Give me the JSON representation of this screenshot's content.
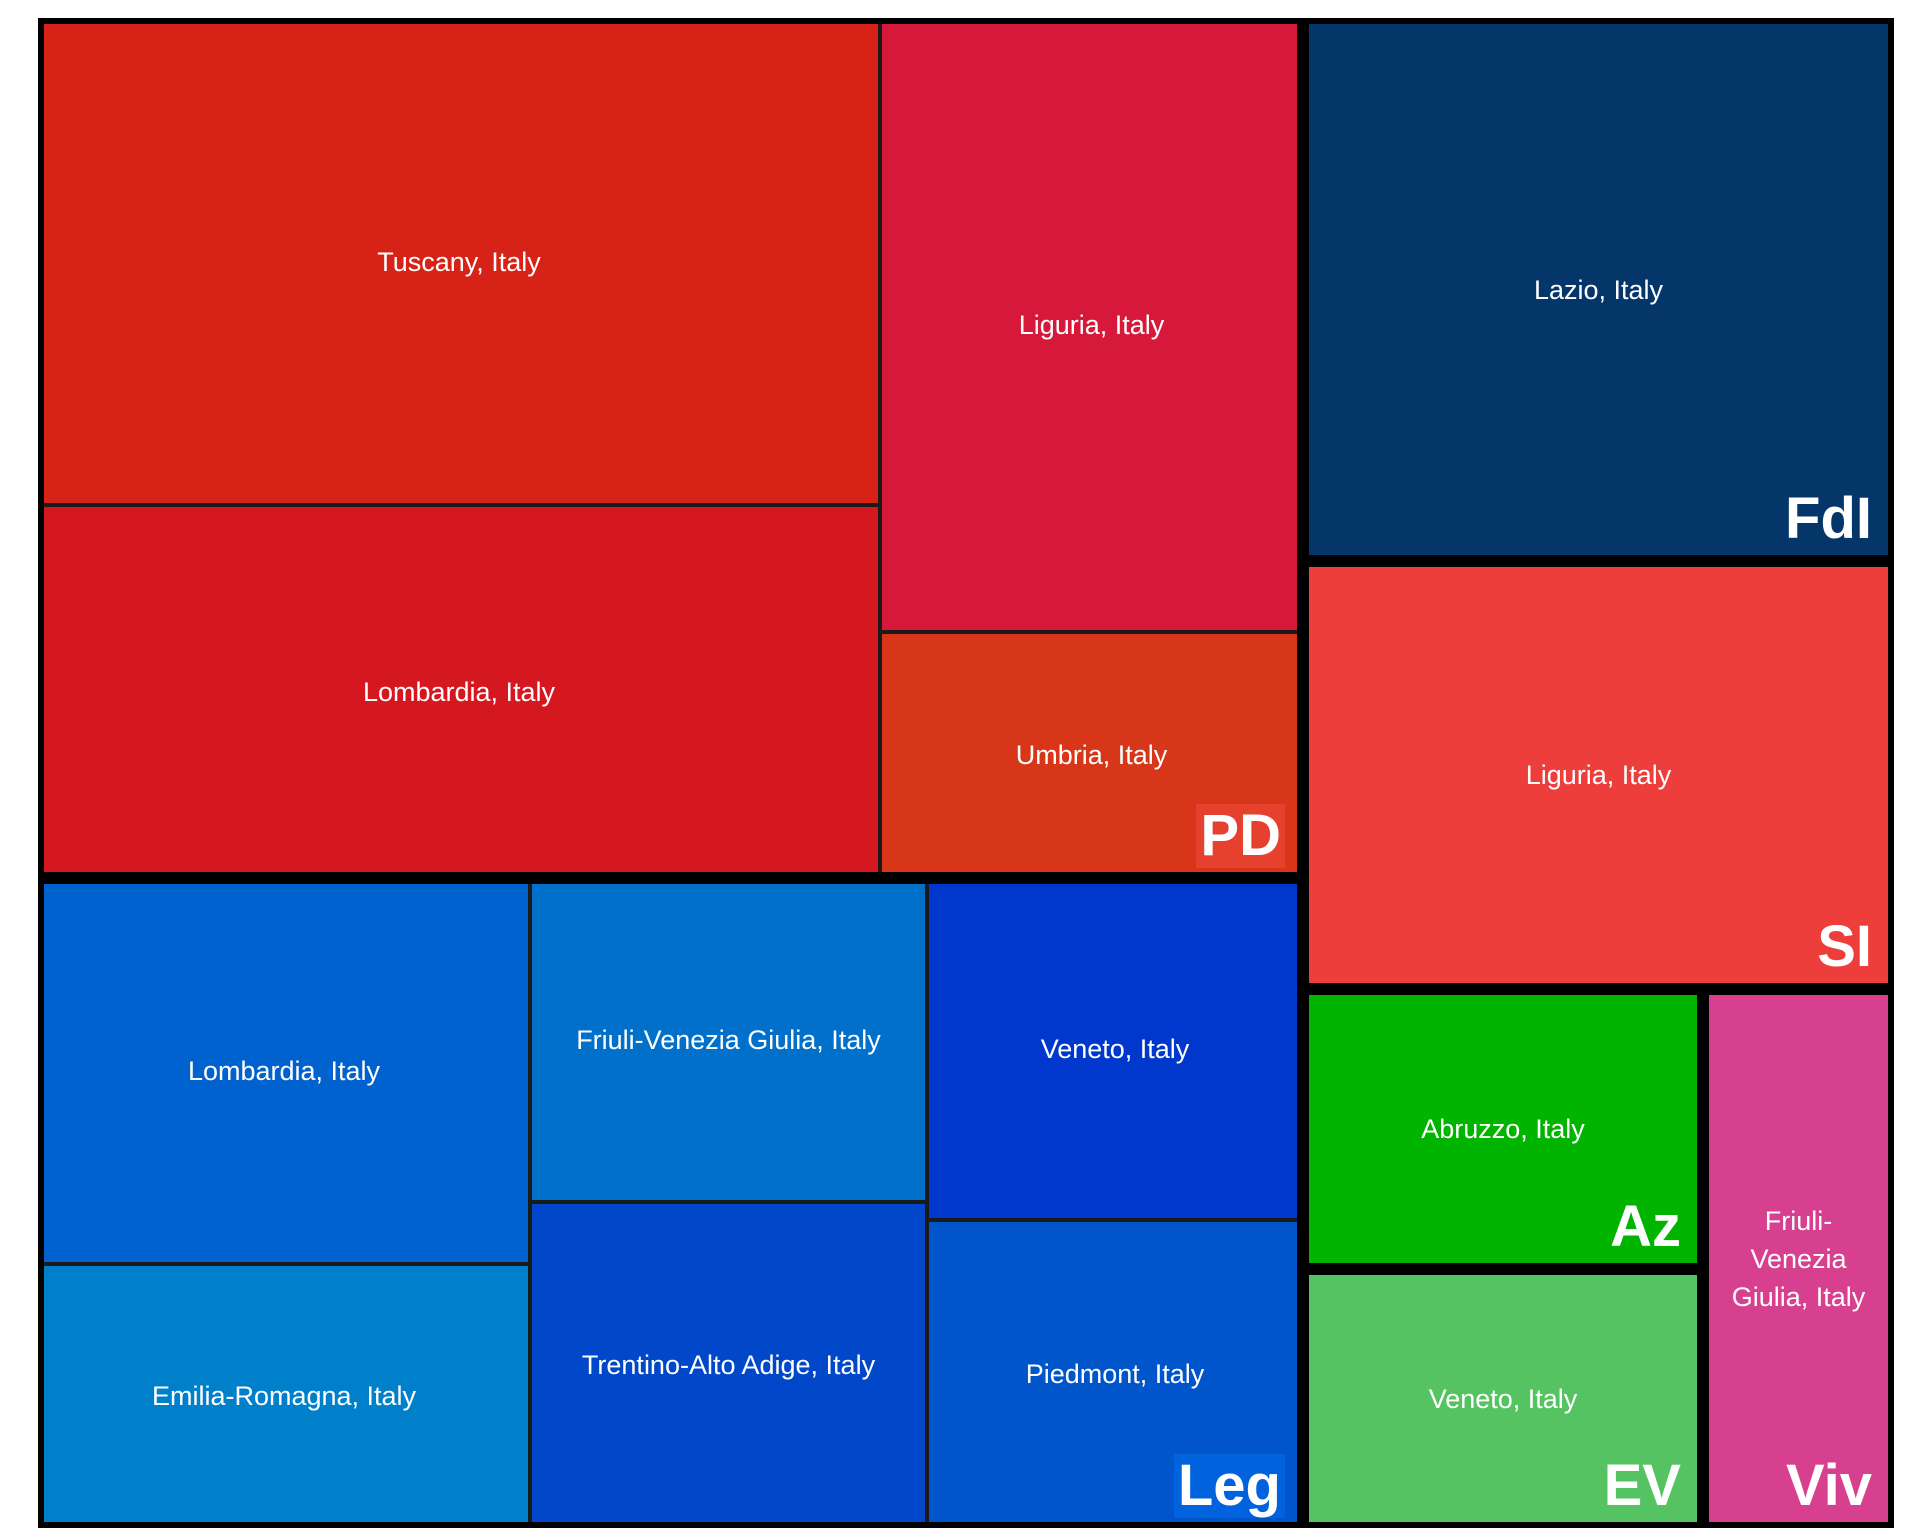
{
  "chart_data": {
    "type": "treemap",
    "groups": [
      {
        "name": "PD",
        "label_bg": "#e5412e",
        "leaves": [
          {
            "label": "Tuscany, Italy",
            "color": "#d72217"
          },
          {
            "label": "Lombardia, Italy",
            "color": "#d51820"
          },
          {
            "label": "Liguria, Italy",
            "color": "#d6193b"
          },
          {
            "label": "Umbria, Italy",
            "color": "#d83618"
          }
        ]
      },
      {
        "name": "FdI",
        "label_bg": "",
        "leaves": [
          {
            "label": "Lazio, Italy",
            "color": "#05366a"
          }
        ]
      },
      {
        "name": "SI",
        "label_bg": "",
        "leaves": [
          {
            "label": "Liguria, Italy",
            "color": "#ee3e3c"
          }
        ]
      },
      {
        "name": "Leg",
        "label_bg": "#0063dd",
        "leaves": [
          {
            "label": "Lombardia, Italy",
            "color": "#0062cf"
          },
          {
            "label": "Emilia-Romagna, Italy",
            "color": "#0080cb"
          },
          {
            "label": "Friuli-Venezia Giulia, Italy",
            "color": "#0070cb"
          },
          {
            "label": "Trentino-Alto Adige, Italy",
            "color": "#0048c9"
          },
          {
            "label": "Veneto, Italy",
            "color": "#0038cd"
          },
          {
            "label": "Piedmont, Italy",
            "color": "#0055cb"
          }
        ]
      },
      {
        "name": "Az",
        "label_bg": "",
        "leaves": [
          {
            "label": "Abruzzo, Italy",
            "color": "#00b400"
          }
        ]
      },
      {
        "name": "EV",
        "label_bg": "",
        "leaves": [
          {
            "label": "Veneto, Italy",
            "color": "#56c363"
          }
        ]
      },
      {
        "name": "Viv",
        "label_bg": "",
        "leaves": [
          {
            "label": "Friuli-Venezia Giulia, Italy",
            "color": "#d6408e"
          }
        ]
      }
    ]
  }
}
